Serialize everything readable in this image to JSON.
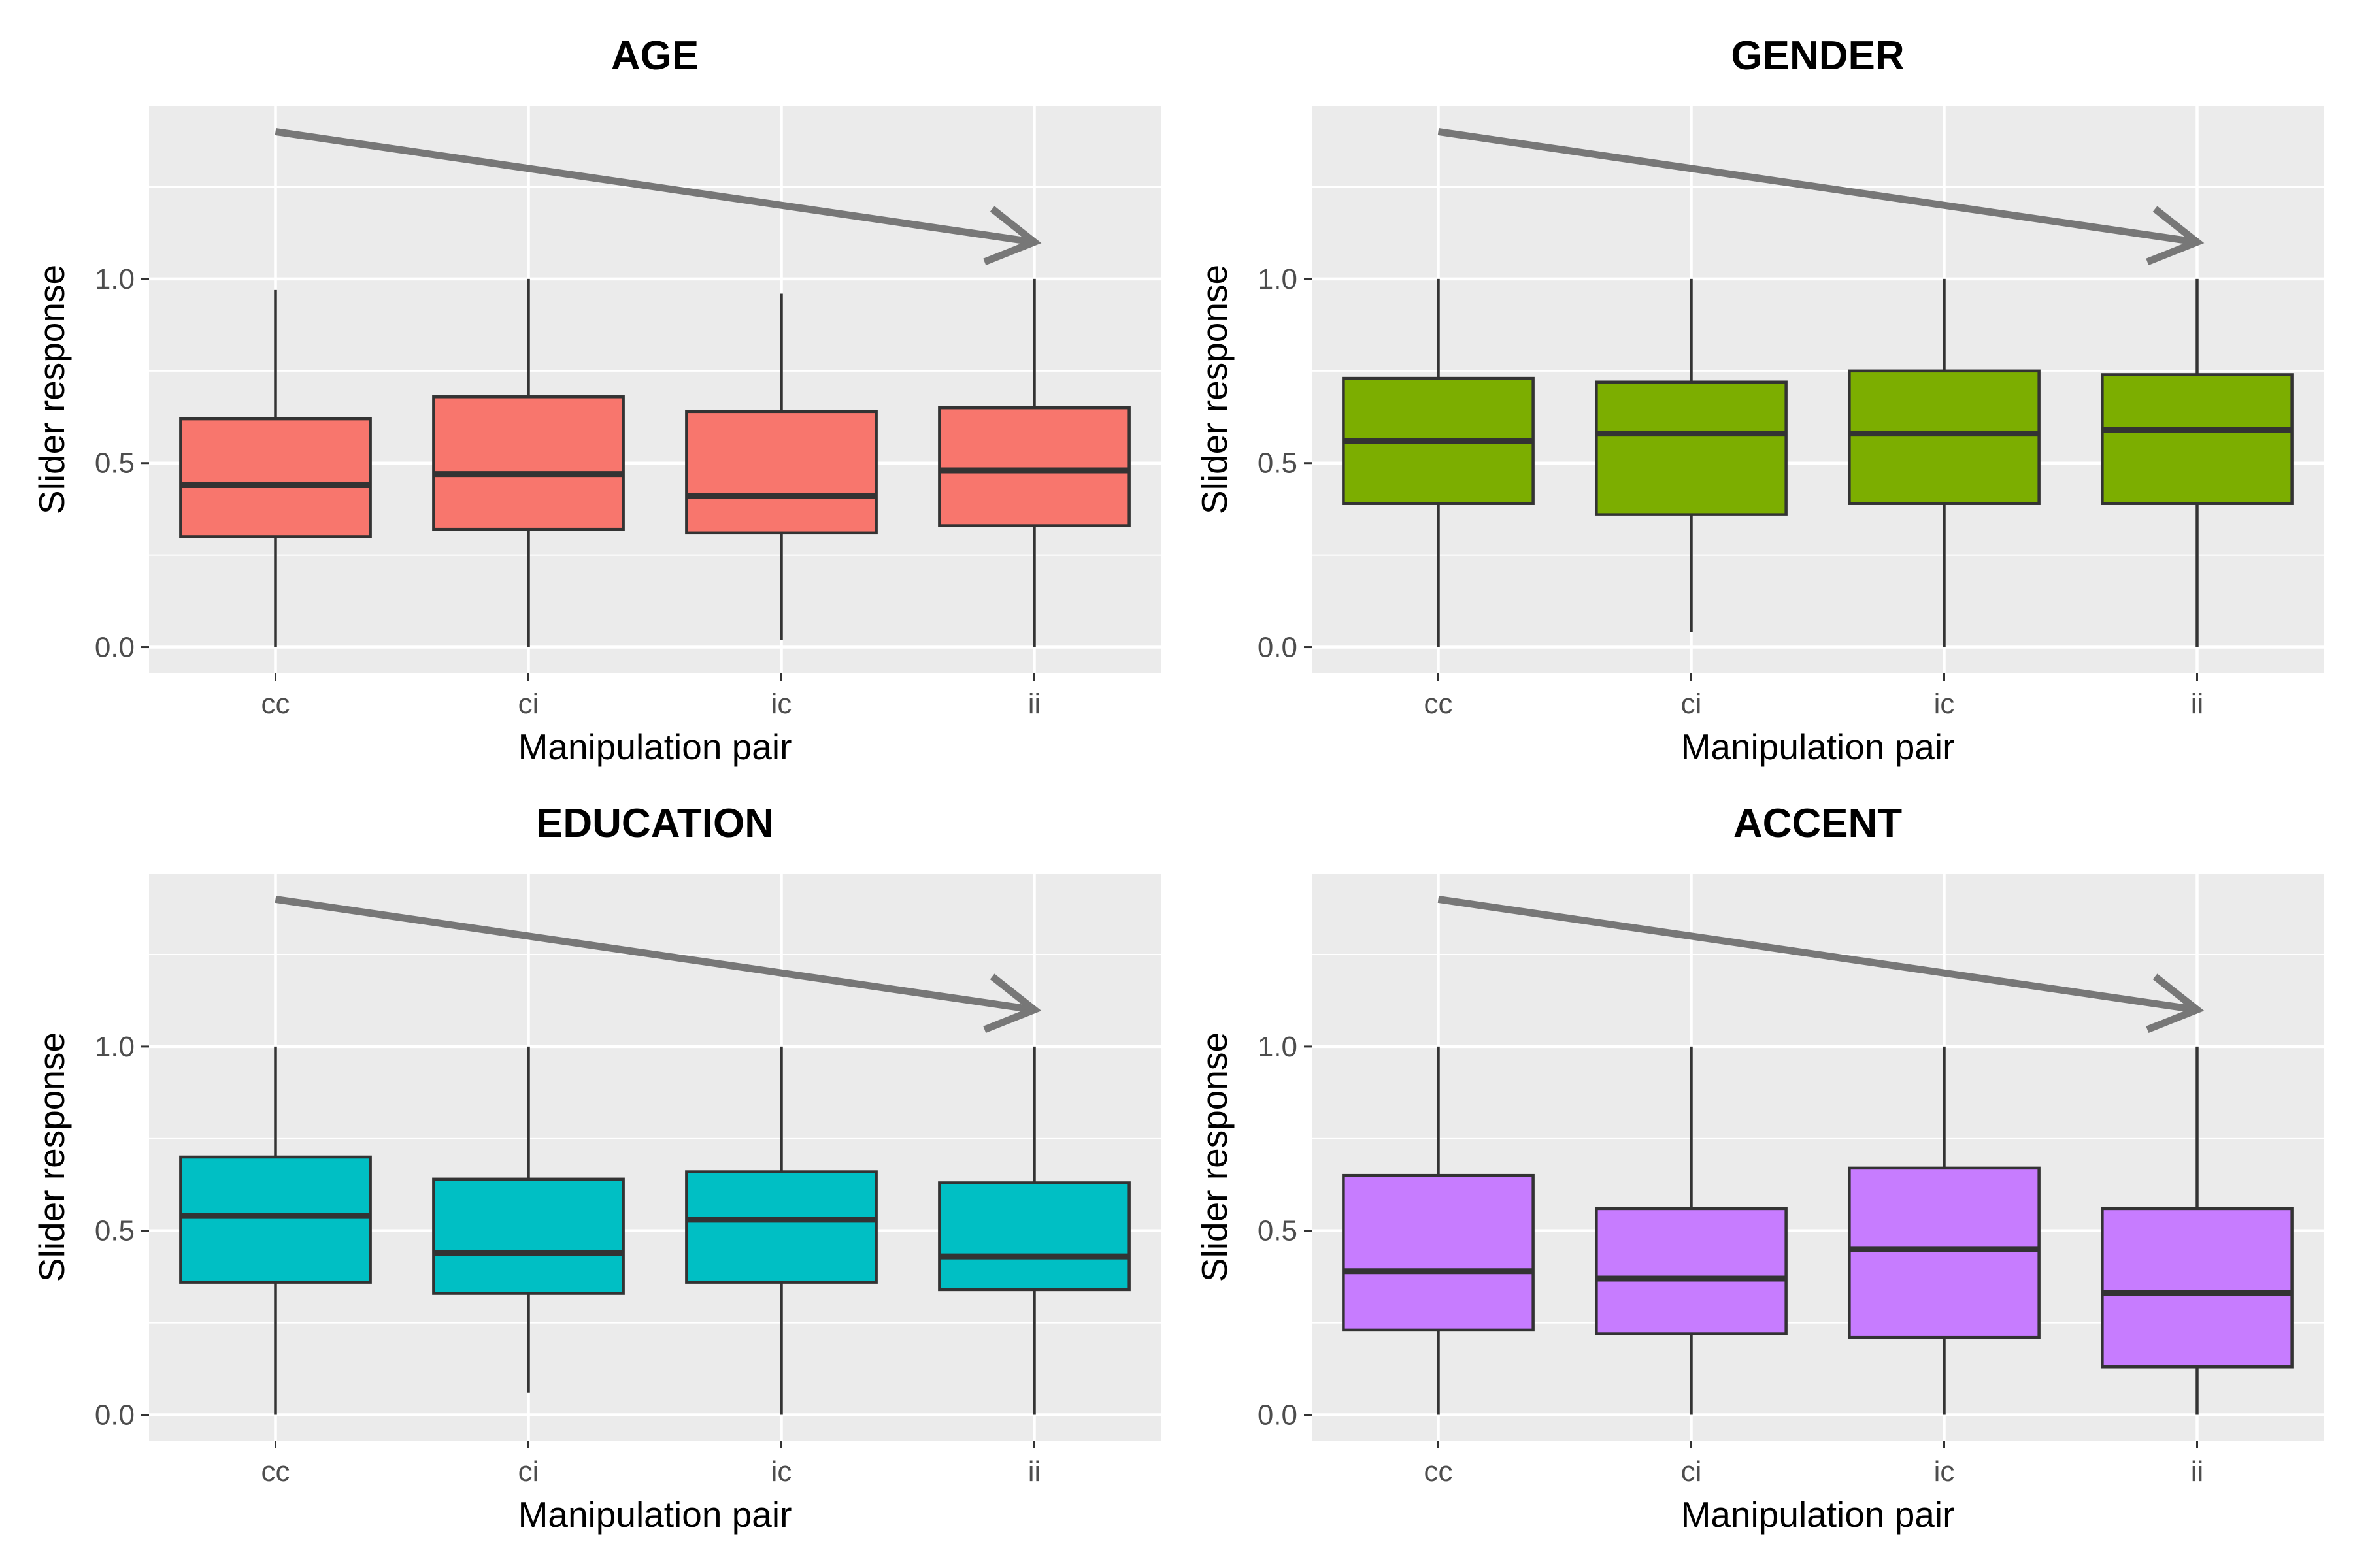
{
  "chart_data": [
    {
      "type": "boxplot",
      "title": "AGE",
      "xlabel": "Manipulation pair",
      "ylabel": "Slider response",
      "categories": [
        "cc",
        "ci",
        "ic",
        "ii"
      ],
      "yticks": [
        "0.0",
        "0.5",
        "1.0"
      ],
      "ylim": [
        -0.07,
        1.47
      ],
      "fill": "#F8766D",
      "boxes": [
        {
          "category": "cc",
          "min": 0.0,
          "q1": 0.3,
          "median": 0.44,
          "q3": 0.62,
          "max": 0.97
        },
        {
          "category": "ci",
          "min": 0.0,
          "q1": 0.32,
          "median": 0.47,
          "q3": 0.68,
          "max": 1.0
        },
        {
          "category": "ic",
          "min": 0.02,
          "q1": 0.31,
          "median": 0.41,
          "q3": 0.64,
          "max": 0.96
        },
        {
          "category": "ii",
          "min": 0.0,
          "q1": 0.33,
          "median": 0.48,
          "q3": 0.65,
          "max": 1.0
        }
      ],
      "arrow": {
        "from": {
          "category": "cc",
          "y": 1.4
        },
        "to": {
          "category": "ii",
          "y": 1.1
        },
        "color": "#777777"
      }
    },
    {
      "type": "boxplot",
      "title": "GENDER",
      "xlabel": "Manipulation pair",
      "ylabel": "Slider response",
      "categories": [
        "cc",
        "ci",
        "ic",
        "ii"
      ],
      "yticks": [
        "0.0",
        "0.5",
        "1.0"
      ],
      "ylim": [
        -0.07,
        1.47
      ],
      "fill": "#7CAE00",
      "boxes": [
        {
          "category": "cc",
          "min": 0.0,
          "q1": 0.39,
          "median": 0.56,
          "q3": 0.73,
          "max": 1.0
        },
        {
          "category": "ci",
          "min": 0.04,
          "q1": 0.36,
          "median": 0.58,
          "q3": 0.72,
          "max": 1.0
        },
        {
          "category": "ic",
          "min": 0.0,
          "q1": 0.39,
          "median": 0.58,
          "q3": 0.75,
          "max": 1.0
        },
        {
          "category": "ii",
          "min": 0.0,
          "q1": 0.39,
          "median": 0.59,
          "q3": 0.74,
          "max": 1.0
        }
      ],
      "arrow": {
        "from": {
          "category": "cc",
          "y": 1.4
        },
        "to": {
          "category": "ii",
          "y": 1.1
        },
        "color": "#777777"
      }
    },
    {
      "type": "boxplot",
      "title": "EDUCATION",
      "xlabel": "Manipulation pair",
      "ylabel": "Slider response",
      "categories": [
        "cc",
        "ci",
        "ic",
        "ii"
      ],
      "yticks": [
        "0.0",
        "0.5",
        "1.0"
      ],
      "ylim": [
        -0.07,
        1.47
      ],
      "fill": "#00BFC4",
      "boxes": [
        {
          "category": "cc",
          "min": 0.0,
          "q1": 0.36,
          "median": 0.54,
          "q3": 0.7,
          "max": 1.0
        },
        {
          "category": "ci",
          "min": 0.06,
          "q1": 0.33,
          "median": 0.44,
          "q3": 0.64,
          "max": 1.0
        },
        {
          "category": "ic",
          "min": 0.0,
          "q1": 0.36,
          "median": 0.53,
          "q3": 0.66,
          "max": 1.0
        },
        {
          "category": "ii",
          "min": 0.0,
          "q1": 0.34,
          "median": 0.43,
          "q3": 0.63,
          "max": 1.0
        }
      ],
      "arrow": {
        "from": {
          "category": "cc",
          "y": 1.4
        },
        "to": {
          "category": "ii",
          "y": 1.1
        },
        "color": "#777777"
      }
    },
    {
      "type": "boxplot",
      "title": "ACCENT",
      "xlabel": "Manipulation pair",
      "ylabel": "Slider response",
      "categories": [
        "cc",
        "ci",
        "ic",
        "ii"
      ],
      "yticks": [
        "0.0",
        "0.5",
        "1.0"
      ],
      "ylim": [
        -0.07,
        1.47
      ],
      "fill": "#C77CFF",
      "boxes": [
        {
          "category": "cc",
          "min": 0.0,
          "q1": 0.23,
          "median": 0.39,
          "q3": 0.65,
          "max": 1.0
        },
        {
          "category": "ci",
          "min": 0.0,
          "q1": 0.22,
          "median": 0.37,
          "q3": 0.56,
          "max": 1.0
        },
        {
          "category": "ic",
          "min": 0.0,
          "q1": 0.21,
          "median": 0.45,
          "q3": 0.67,
          "max": 1.0
        },
        {
          "category": "ii",
          "min": 0.0,
          "q1": 0.13,
          "median": 0.33,
          "q3": 0.56,
          "max": 1.0
        }
      ],
      "arrow": {
        "from": {
          "category": "cc",
          "y": 1.4
        },
        "to": {
          "category": "ii",
          "y": 1.1
        },
        "color": "#777777"
      }
    }
  ]
}
